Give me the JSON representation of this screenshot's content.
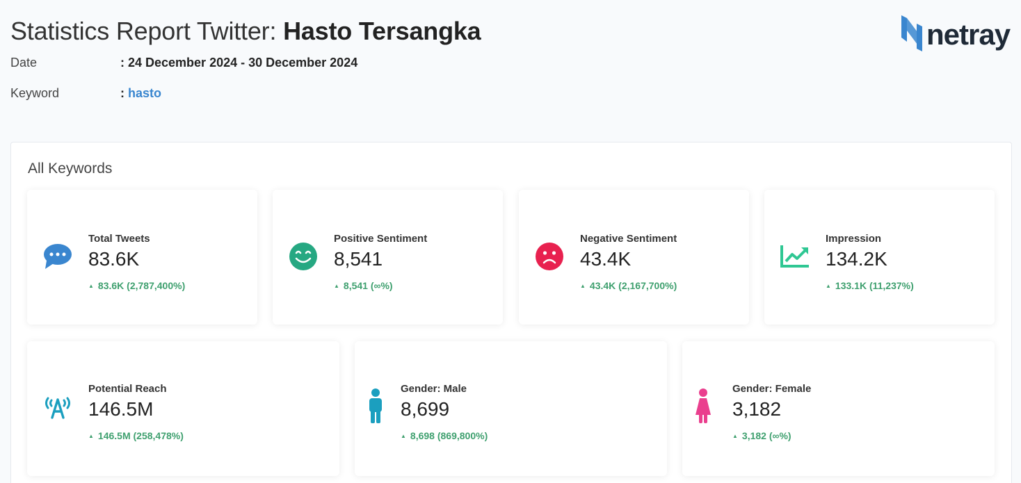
{
  "report": {
    "title_prefix": "Statistics Report Twitter: ",
    "title_topic": "Hasto Tersangka",
    "date_label": "Date",
    "date_value": ": 24 December 2024 - 30 December 2024",
    "keyword_label": "Keyword",
    "keyword_sep": ": ",
    "keyword_value": "hasto"
  },
  "logo": {
    "text": "netray",
    "icon": "netray-n-logo-icon",
    "color": "#3a86cf"
  },
  "panel": {
    "title": "All Keywords"
  },
  "cards": [
    {
      "label": "Total Tweets",
      "value": "83.6K",
      "delta": "83.6K (2,787,400%)",
      "icon": "chat-bubble-icon",
      "color": "#3a86cf"
    },
    {
      "label": "Positive Sentiment",
      "value": "8,541",
      "delta": "8,541 (∞%)",
      "icon": "smile-face-icon",
      "color": "#26a882"
    },
    {
      "label": "Negative Sentiment",
      "value": "43.4K",
      "delta": "43.4K (2,167,700%)",
      "icon": "sad-face-icon",
      "color": "#e8214f"
    },
    {
      "label": "Impression",
      "value": "134.2K",
      "delta": "133.1K (11,237%)",
      "icon": "trend-chart-icon",
      "color": "#2fc793"
    },
    {
      "label": "Potential Reach",
      "value": "146.5M",
      "delta": "146.5M (258,478%)",
      "icon": "broadcast-tower-icon",
      "color": "#1b9fbf"
    },
    {
      "label": "Gender: Male",
      "value": "8,699",
      "delta": "8,698 (869,800%)",
      "icon": "male-icon",
      "color": "#1b9fbf"
    },
    {
      "label": "Gender: Female",
      "value": "3,182",
      "delta": "3,182 (∞%)",
      "icon": "female-icon",
      "color": "#ea3f8e"
    }
  ]
}
